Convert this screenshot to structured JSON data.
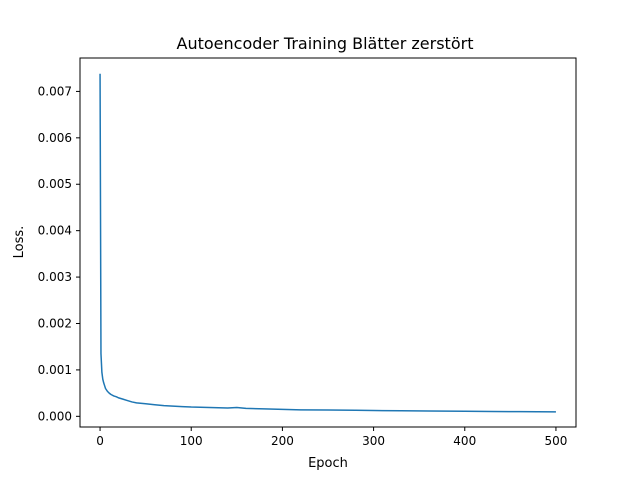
{
  "chart_data": {
    "type": "line",
    "title": "Autoencoder Training Blätter zerstört",
    "xlabel": "Epoch",
    "ylabel": "Loss.",
    "xlim": [
      -22,
      522
    ],
    "ylim": [
      -0.00023,
      0.00772
    ],
    "x_ticks": [
      0,
      100,
      200,
      300,
      400,
      500
    ],
    "x_tick_labels": [
      "0",
      "100",
      "200",
      "300",
      "400",
      "500"
    ],
    "y_ticks": [
      0.0,
      0.001,
      0.002,
      0.003,
      0.004,
      0.005,
      0.006,
      0.007
    ],
    "y_tick_labels": [
      "0.000",
      "0.001",
      "0.002",
      "0.003",
      "0.004",
      "0.005",
      "0.006",
      "0.007"
    ],
    "grid": false,
    "line_color": "#1f77b4",
    "series": [
      {
        "x": [
          0,
          1,
          2,
          3,
          4,
          5,
          6,
          8,
          10,
          12,
          15,
          18,
          20,
          25,
          30,
          35,
          40,
          50,
          60,
          70,
          80,
          90,
          100,
          120,
          140,
          150,
          160,
          180,
          200,
          220,
          250,
          280,
          300,
          330,
          360,
          400,
          430,
          460,
          500
        ],
        "y": [
          0.00738,
          0.00135,
          0.00095,
          0.0008,
          0.00072,
          0.00066,
          0.0006,
          0.00054,
          0.0005,
          0.00047,
          0.00044,
          0.00042,
          0.0004,
          0.00037,
          0.00034,
          0.00031,
          0.00029,
          0.00027,
          0.00025,
          0.00023,
          0.00022,
          0.00021,
          0.0002,
          0.00019,
          0.00018,
          0.00019,
          0.00017,
          0.00016,
          0.00015,
          0.00014,
          0.000135,
          0.00013,
          0.000125,
          0.00012,
          0.000115,
          0.00011,
          0.000105,
          0.0001,
          9.5e-05
        ]
      }
    ]
  }
}
